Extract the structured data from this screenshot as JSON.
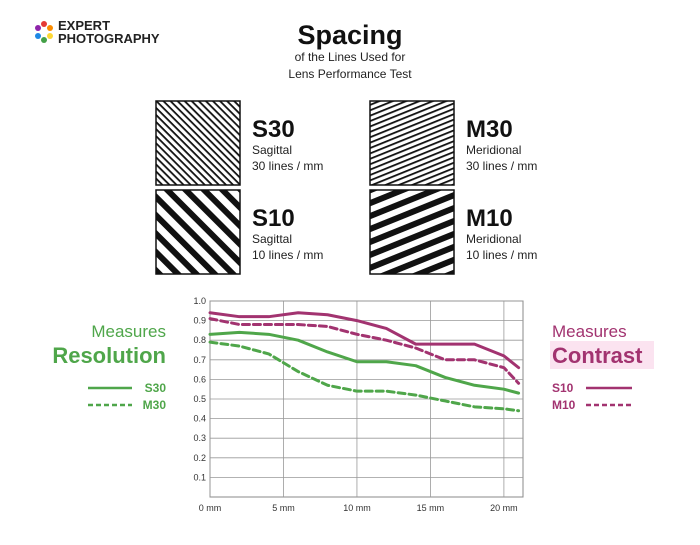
{
  "logo": {
    "line1": "EXPERT",
    "line2": "PHOTOGRAPHY"
  },
  "header": {
    "title": "Spacing",
    "subtitle_lines": [
      "of the Lines Used for",
      "Lens Performance Test"
    ]
  },
  "patterns": [
    {
      "code": "S30",
      "kind": "Sagittal",
      "spacing": "30 lines / mm"
    },
    {
      "code": "M30",
      "kind": "Meridional",
      "spacing": "30 lines / mm"
    },
    {
      "code": "S10",
      "kind": "Sagittal",
      "spacing": "10 lines / mm"
    },
    {
      "code": "M10",
      "kind": "Meridional",
      "spacing": "10 lines / mm"
    }
  ],
  "annotations": {
    "left": {
      "verb": "Measures",
      "quality": "Resolution"
    },
    "right": {
      "verb": "Measures",
      "quality": "Contrast"
    }
  },
  "chart_data": {
    "type": "line",
    "x": [
      0,
      2,
      4,
      6,
      8,
      10,
      12,
      14,
      16,
      18,
      20,
      21
    ],
    "xlim": [
      0,
      21.3
    ],
    "ylim": [
      0,
      1.0
    ],
    "xticks": [
      {
        "value": 0,
        "label": "0 mm"
      },
      {
        "value": 5,
        "label": "5 mm"
      },
      {
        "value": 10,
        "label": "10 mm"
      },
      {
        "value": 15,
        "label": "15 mm"
      },
      {
        "value": 20,
        "label": "20 mm"
      }
    ],
    "yticks": [
      0.1,
      0.2,
      0.3,
      0.4,
      0.5,
      0.6,
      0.7,
      0.8,
      0.9,
      {
        "value": 1,
        "label": "1.0"
      }
    ],
    "grid": true,
    "series": [
      {
        "name": "S30",
        "color": "#4fa64a",
        "style": "solid",
        "values": [
          0.83,
          0.84,
          0.83,
          0.8,
          0.74,
          0.69,
          0.69,
          0.67,
          0.61,
          0.57,
          0.55,
          0.53
        ]
      },
      {
        "name": "M30",
        "color": "#4fa64a",
        "style": "dashed",
        "values": [
          0.79,
          0.77,
          0.73,
          0.64,
          0.57,
          0.54,
          0.54,
          0.52,
          0.49,
          0.46,
          0.45,
          0.44
        ]
      },
      {
        "name": "S10",
        "color": "#a23370",
        "style": "solid",
        "values": [
          0.94,
          0.92,
          0.92,
          0.94,
          0.93,
          0.9,
          0.86,
          0.78,
          0.78,
          0.78,
          0.72,
          0.66
        ]
      },
      {
        "name": "M10",
        "color": "#a23370",
        "style": "dashed",
        "values": [
          0.91,
          0.88,
          0.88,
          0.88,
          0.87,
          0.83,
          0.8,
          0.76,
          0.7,
          0.7,
          0.66,
          0.58
        ]
      }
    ]
  }
}
